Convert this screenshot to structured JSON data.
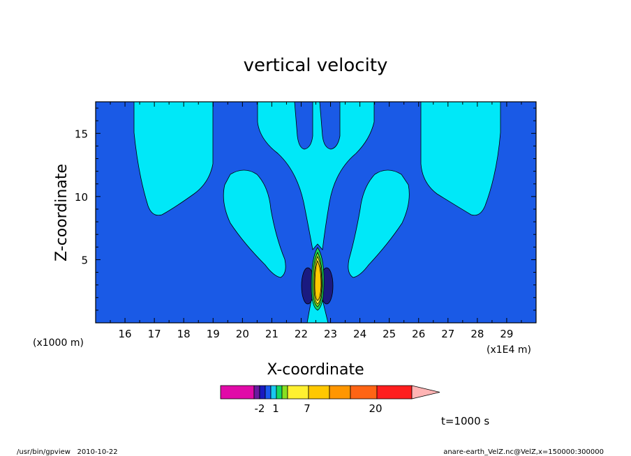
{
  "chart_data": {
    "type": "contour",
    "title": "vertical velocity",
    "xlabel": "X-coordinate",
    "ylabel": "Z-coordinate",
    "x_unit_label": "(x1E4 m)",
    "y_unit_label": "(x1000 m)",
    "x_ticks": [
      16,
      17,
      18,
      19,
      20,
      21,
      22,
      23,
      24,
      25,
      26,
      27,
      28,
      29
    ],
    "y_ticks": [
      5,
      10,
      15
    ],
    "xlim": [
      15.0,
      30.0
    ],
    "ylim": [
      0.0,
      17.5
    ],
    "colorbar": {
      "labels": [
        {
          "text": "-2",
          "value": -2
        },
        {
          "text": "1",
          "value": 1
        },
        {
          "text": "7",
          "value": 7
        },
        {
          "text": "20",
          "value": 20
        }
      ],
      "colors": [
        "#e10aa8",
        "#6a1aa0",
        "#1a1ac0",
        "#1a5af0",
        "#18c8f0",
        "#18d860",
        "#88e020",
        "#fff030",
        "#ffc800",
        "#ff9600",
        "#ff6414",
        "#ff1e1e",
        "#ff8080",
        "#ffb4b4"
      ]
    },
    "annotation": "t=1000 s"
  },
  "footer": {
    "left": "/usr/bin/gpview   2010-10-22",
    "right": "anare-earth_VelZ.nc@VelZ,x=150000:300000"
  },
  "colors": {
    "background_level": "#1a5ae6",
    "light_level": "#00e8f8",
    "positive_core": "#ffcc00"
  }
}
